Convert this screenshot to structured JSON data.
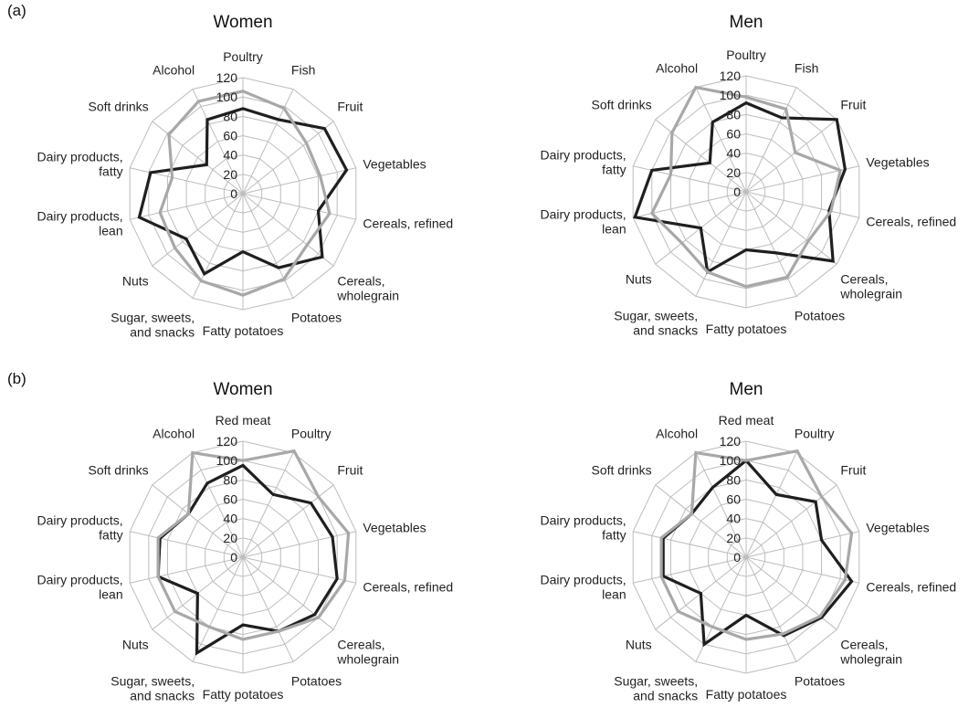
{
  "panels": [
    {
      "label": "(a)"
    },
    {
      "label": "(b)"
    }
  ],
  "colors": {
    "dark": "#1f1f1f",
    "light": "#a8a8a8",
    "grid": "#bdbdbd"
  },
  "chart_data": [
    {
      "type": "radar",
      "panel": "(a)",
      "title": "Women",
      "rlim": [
        0,
        120
      ],
      "ticks": [
        0,
        20,
        40,
        60,
        80,
        100,
        120
      ],
      "grid": true,
      "categories": [
        "Poultry",
        "Fish",
        "Fruit",
        "Vegetables",
        "Cereals, refined",
        "Cereals, wholegrain",
        "Potatoes",
        "Fatty potatoes",
        "Sugar, sweets, and snacks",
        "Nuts",
        "Dairy products, lean",
        "Dairy products, fatty",
        "Soft drinks",
        "Alcohol"
      ],
      "series": [
        {
          "color": "#1f1f1f",
          "values": [
            88,
            85,
            108,
            110,
            80,
            105,
            85,
            60,
            92,
            75,
            110,
            98,
            48,
            85
          ]
        },
        {
          "color": "#a8a8a8",
          "values": [
            106,
            98,
            84,
            82,
            92,
            85,
            98,
            105,
            100,
            90,
            88,
            75,
            98,
            106
          ]
        }
      ]
    },
    {
      "type": "radar",
      "panel": "(a)",
      "title": "Men",
      "rlim": [
        0,
        120
      ],
      "ticks": [
        0,
        20,
        40,
        60,
        80,
        100,
        120
      ],
      "grid": true,
      "categories": [
        "Poultry",
        "Fish",
        "Fruit",
        "Vegetables",
        "Cereals, refined",
        "Cereals, wholegrain",
        "Potatoes",
        "Fatty potatoes",
        "Sugar, sweets, and snacks",
        "Nuts",
        "Dairy products, lean",
        "Dairy products, fatty",
        "Soft drinks",
        "Alcohol"
      ],
      "series": [
        {
          "color": "#1f1f1f",
          "values": [
            92,
            85,
            120,
            105,
            88,
            115,
            70,
            60,
            92,
            60,
            118,
            100,
            48,
            80
          ]
        },
        {
          "color": "#a8a8a8",
          "values": [
            98,
            95,
            65,
            100,
            90,
            82,
            98,
            98,
            92,
            85,
            100,
            80,
            98,
            120
          ]
        }
      ]
    },
    {
      "type": "radar",
      "panel": "(b)",
      "title": "Women",
      "rlim": [
        0,
        120
      ],
      "ticks": [
        0,
        20,
        40,
        60,
        80,
        100,
        120
      ],
      "grid": true,
      "categories": [
        "Red meat",
        "Poultry",
        "Fruit",
        "Vegetables",
        "Cereals, refined",
        "Cereals, wholegrain",
        "Potatoes",
        "Fatty potatoes",
        "Sugar, sweets, and snacks",
        "Nuts",
        "Dairy products, lean",
        "Dairy products, fatty",
        "Soft drinks",
        "Alcohol"
      ],
      "series": [
        {
          "color": "#1f1f1f",
          "values": [
            95,
            72,
            90,
            95,
            100,
            95,
            85,
            70,
            110,
            60,
            90,
            88,
            72,
            85
          ]
        },
        {
          "color": "#a8a8a8",
          "values": [
            100,
            122,
            100,
            112,
            108,
            100,
            85,
            85,
            80,
            90,
            90,
            90,
            72,
            120
          ]
        }
      ]
    },
    {
      "type": "radar",
      "panel": "(b)",
      "title": "Men",
      "rlim": [
        0,
        120
      ],
      "ticks": [
        0,
        20,
        40,
        60,
        80,
        100,
        120
      ],
      "grid": true,
      "categories": [
        "Red meat",
        "Poultry",
        "Fruit",
        "Vegetables",
        "Cereals, refined",
        "Cereals, wholegrain",
        "Potatoes",
        "Fatty potatoes",
        "Sugar, sweets, and snacks",
        "Nuts",
        "Dairy products, lean",
        "Dairy products, fatty",
        "Soft drinks",
        "Alcohol"
      ],
      "series": [
        {
          "color": "#1f1f1f",
          "values": [
            100,
            72,
            92,
            80,
            112,
            100,
            90,
            60,
            100,
            60,
            88,
            88,
            72,
            80
          ]
        },
        {
          "color": "#a8a8a8",
          "values": [
            100,
            122,
            100,
            112,
            105,
            98,
            88,
            85,
            80,
            90,
            90,
            90,
            72,
            120
          ]
        }
      ]
    }
  ]
}
